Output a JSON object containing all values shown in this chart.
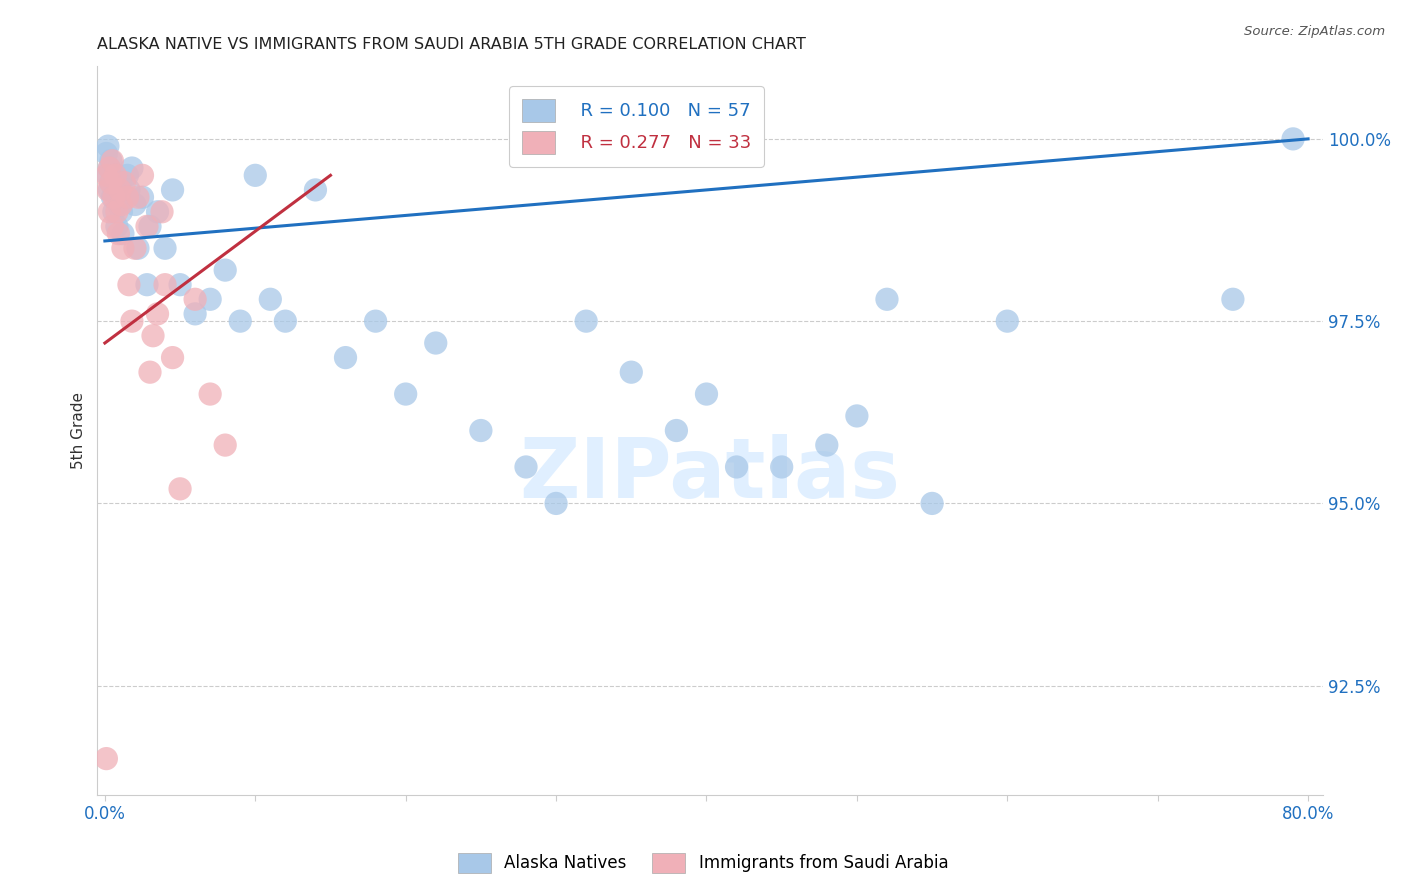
{
  "title": "ALASKA NATIVE VS IMMIGRANTS FROM SAUDI ARABIA 5TH GRADE CORRELATION CHART",
  "source": "Source: ZipAtlas.com",
  "ylabel": "5th Grade",
  "y_ticks": [
    92.5,
    95.0,
    97.5,
    100.0
  ],
  "legend_blue_R": "R = 0.100",
  "legend_blue_N": "N = 57",
  "legend_pink_R": "R = 0.277",
  "legend_pink_N": "N = 33",
  "legend_label_blue": "Alaska Natives",
  "legend_label_pink": "Immigrants from Saudi Arabia",
  "blue_color": "#a8c8e8",
  "pink_color": "#f0b0b8",
  "blue_line_color": "#2070c0",
  "pink_line_color": "#c03040",
  "watermark_color": "#ddeeff",
  "blue_scatter_x": [
    0.001,
    0.002,
    0.002,
    0.003,
    0.003,
    0.004,
    0.004,
    0.005,
    0.005,
    0.006,
    0.007,
    0.008,
    0.009,
    0.01,
    0.011,
    0.012,
    0.013,
    0.015,
    0.016,
    0.018,
    0.02,
    0.022,
    0.025,
    0.028,
    0.03,
    0.035,
    0.04,
    0.045,
    0.05,
    0.06,
    0.07,
    0.08,
    0.09,
    0.1,
    0.11,
    0.12,
    0.14,
    0.16,
    0.18,
    0.2,
    0.22,
    0.25,
    0.28,
    0.3,
    0.32,
    0.35,
    0.38,
    0.4,
    0.42,
    0.45,
    0.48,
    0.5,
    0.52,
    0.55,
    0.6,
    0.75,
    0.79
  ],
  "blue_scatter_y": [
    99.8,
    99.5,
    99.9,
    99.3,
    99.6,
    99.4,
    99.7,
    99.2,
    99.5,
    99.0,
    99.3,
    98.8,
    99.1,
    99.4,
    99.0,
    98.7,
    99.2,
    99.5,
    99.3,
    99.6,
    99.1,
    98.5,
    99.2,
    98.0,
    98.8,
    99.0,
    98.5,
    99.3,
    98.0,
    97.6,
    97.8,
    98.2,
    97.5,
    99.5,
    97.8,
    97.5,
    99.3,
    97.0,
    97.5,
    96.5,
    97.2,
    96.0,
    95.5,
    95.0,
    97.5,
    96.8,
    96.0,
    96.5,
    95.5,
    95.5,
    95.8,
    96.2,
    97.8,
    95.0,
    97.5,
    97.8,
    100.0
  ],
  "pink_scatter_x": [
    0.001,
    0.002,
    0.003,
    0.003,
    0.004,
    0.005,
    0.005,
    0.006,
    0.007,
    0.008,
    0.009,
    0.01,
    0.011,
    0.012,
    0.013,
    0.015,
    0.016,
    0.018,
    0.02,
    0.022,
    0.025,
    0.028,
    0.03,
    0.032,
    0.035,
    0.038,
    0.04,
    0.045,
    0.05,
    0.06,
    0.07,
    0.08,
    0.001
  ],
  "pink_scatter_y": [
    99.5,
    99.3,
    99.0,
    99.6,
    99.4,
    99.7,
    98.8,
    99.2,
    99.5,
    99.0,
    98.7,
    99.3,
    99.1,
    98.5,
    99.4,
    99.2,
    98.0,
    97.5,
    98.5,
    99.2,
    99.5,
    98.8,
    96.8,
    97.3,
    97.6,
    99.0,
    98.0,
    97.0,
    95.2,
    97.8,
    96.5,
    95.8,
    91.5
  ],
  "blue_trendline_x": [
    0.0,
    0.8
  ],
  "blue_trendline_y": [
    98.6,
    100.0
  ],
  "pink_trendline_x": [
    0.0,
    0.15
  ],
  "pink_trendline_y": [
    97.2,
    99.5
  ],
  "xlim": [
    -0.005,
    0.81
  ],
  "ylim": [
    91.0,
    101.0
  ],
  "x_ticks": [
    0.0,
    0.1,
    0.2,
    0.3,
    0.4,
    0.5,
    0.6,
    0.7,
    0.8
  ],
  "x_tick_labels_show": {
    "0.0": "0.0%",
    "0.8": "80.0%"
  },
  "figsize": [
    14.06,
    8.92
  ],
  "dpi": 100
}
